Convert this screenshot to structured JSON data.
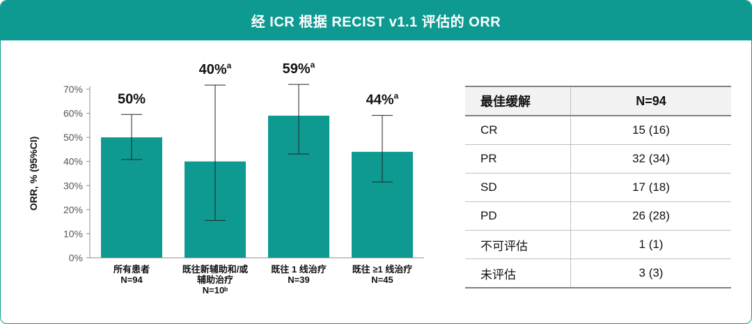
{
  "header": {
    "title": "经 ICR 根据 RECIST v1.1 评估的 ORR"
  },
  "colors": {
    "teal": "#0e9a91"
  },
  "chart_data": {
    "type": "bar",
    "ylabel": "ORR, % (95%CI)",
    "ylim": [
      0,
      70
    ],
    "yticks": [
      "0%",
      "10%",
      "20%",
      "30%",
      "40%",
      "50%",
      "60%",
      "70%"
    ],
    "grid": false,
    "categories": [
      {
        "lines": [
          "所有患者",
          "N=94"
        ]
      },
      {
        "lines": [
          "既往新辅助和/或",
          "辅助治疗",
          "N=10ᵇ"
        ]
      },
      {
        "lines": [
          "既往 1 线治疗",
          "N=39"
        ]
      },
      {
        "lines": [
          "既往 ≥1 线治疗",
          "N=45"
        ]
      }
    ],
    "values": [
      50,
      40,
      59,
      44
    ],
    "ci_low": [
      40.8,
      15.5,
      43.1,
      31.5
    ],
    "ci_high": [
      59.5,
      71.7,
      72.0,
      59.1
    ],
    "value_labels": [
      "50%",
      "40%",
      "59%",
      "44%"
    ],
    "value_superscripts": [
      "",
      "a",
      "a",
      "a"
    ]
  },
  "table": {
    "headers": [
      "最佳缓解",
      "N=94"
    ],
    "rows": [
      [
        "CR",
        "15 (16)"
      ],
      [
        "PR",
        "32 (34)"
      ],
      [
        "SD",
        "17 (18)"
      ],
      [
        "PD",
        "26 (28)"
      ],
      [
        "不可评估",
        "1 (1)"
      ],
      [
        "未评估",
        "3 (3)"
      ]
    ]
  }
}
